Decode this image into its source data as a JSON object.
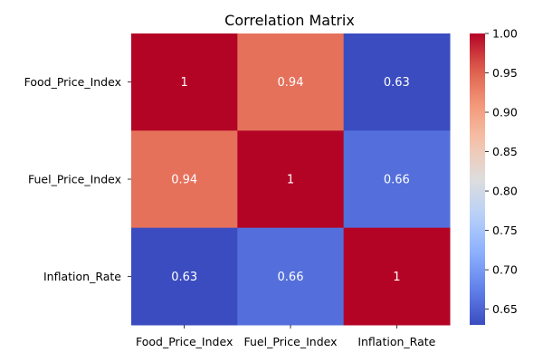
{
  "chart_data": {
    "type": "heatmap",
    "title": "Correlation Matrix",
    "xlabel": "",
    "ylabel": "",
    "rows": [
      "Food_Price_Index",
      "Fuel_Price_Index",
      "Inflation_Rate"
    ],
    "columns": [
      "Food_Price_Index",
      "Fuel_Price_Index",
      "Inflation_Rate"
    ],
    "values": [
      [
        1.0,
        0.94,
        0.63
      ],
      [
        0.94,
        1.0,
        0.66
      ],
      [
        0.63,
        0.66,
        1.0
      ]
    ],
    "cell_labels": [
      [
        "1",
        "0.94",
        "0.63"
      ],
      [
        "0.94",
        "1",
        "0.66"
      ],
      [
        "0.63",
        "0.66",
        "1"
      ]
    ],
    "colormap": "coolwarm",
    "colorbar": {
      "range": [
        0.63,
        1.0
      ],
      "ticks": [
        0.65,
        0.7,
        0.75,
        0.8,
        0.85,
        0.9,
        0.95,
        1.0
      ],
      "tick_labels": [
        "0.65",
        "0.70",
        "0.75",
        "0.80",
        "0.85",
        "0.90",
        "0.95",
        "1.00"
      ]
    },
    "grid": false,
    "legend": "colorbar-right"
  }
}
